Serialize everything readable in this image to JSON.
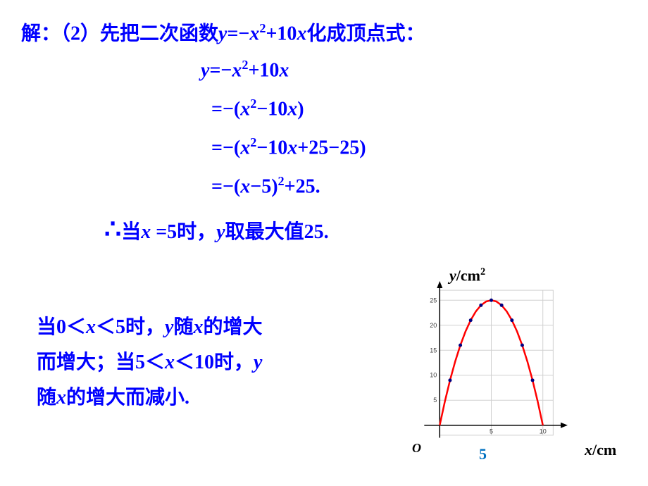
{
  "title": {
    "prefix": "解：（2）先把二次函数",
    "formula_y": "y",
    "formula_eq": "=−",
    "formula_x": "x",
    "formula_exp": "2",
    "formula_plus10x": "+10",
    "formula_x2": "x",
    "suffix": "化成顶点式："
  },
  "step1": {
    "y": "y",
    "eq": "=−",
    "x": "x",
    "exp": "2",
    "plus10": "+10",
    "x2": "x"
  },
  "step2": {
    "eq": "=−(",
    "x": "x",
    "exp": "2",
    "minus10": "−10",
    "x2": "x",
    "close": ")"
  },
  "step3": {
    "eq": "=−(",
    "x": "x",
    "exp": "2",
    "minus10": "−10",
    "x2": "x",
    "tail": "+25−25)"
  },
  "step4": {
    "eq": "=−(",
    "x": "x",
    "minus5": "−5)",
    "exp": "2",
    "tail": "+25."
  },
  "conclusion1": {
    "prefix": "当",
    "x": "x",
    "eq5": " =5时，",
    "y": "y",
    "suffix": "取最大值25."
  },
  "conclusion2": {
    "line1_a": "当0＜",
    "line1_x": "x",
    "line1_b": "＜5时，",
    "line1_y": "y",
    "line1_c": "随",
    "line1_x2": "x",
    "line1_d": "的增大",
    "line2_a": "而增大；当5＜",
    "line2_x": "x",
    "line2_b": "＜10时，",
    "line2_y": "y",
    "line3_a": "随",
    "line3_x": "x",
    "line3_b": "的增大而减小."
  },
  "chart": {
    "x_label": "x",
    "x_unit": "/cm",
    "y_label": "y",
    "y_unit": "/cm",
    "y_unit_exp": "2",
    "origin": "O",
    "tick5": "5",
    "xlim": [
      -2,
      12
    ],
    "ylim": [
      -3,
      28
    ],
    "grid_color": "#d0d0d0",
    "axis_color": "#000000",
    "curve_color": "#ff0000",
    "point_color": "#000080",
    "curve_width": 2.5,
    "curve": [
      [
        0,
        0
      ],
      [
        0.5,
        4.75
      ],
      [
        1,
        9
      ],
      [
        1.5,
        12.75
      ],
      [
        2,
        16
      ],
      [
        2.5,
        18.75
      ],
      [
        3,
        21
      ],
      [
        3.5,
        22.75
      ],
      [
        4,
        24
      ],
      [
        4.5,
        24.75
      ],
      [
        5,
        25
      ],
      [
        5.5,
        24.75
      ],
      [
        6,
        24
      ],
      [
        6.5,
        22.75
      ],
      [
        7,
        21
      ],
      [
        7.5,
        18.75
      ],
      [
        8,
        16
      ],
      [
        8.5,
        12.75
      ],
      [
        9,
        9
      ],
      [
        9.5,
        4.75
      ],
      [
        10,
        0
      ]
    ],
    "points": [
      [
        1,
        9
      ],
      [
        2,
        16
      ],
      [
        3,
        21
      ],
      [
        4,
        24
      ],
      [
        5,
        25
      ],
      [
        6,
        24
      ],
      [
        7,
        21
      ],
      [
        8,
        16
      ],
      [
        9,
        9
      ]
    ],
    "y_ticks": [
      5,
      10,
      15,
      20,
      25
    ],
    "x_ticks": [
      5,
      10
    ]
  }
}
